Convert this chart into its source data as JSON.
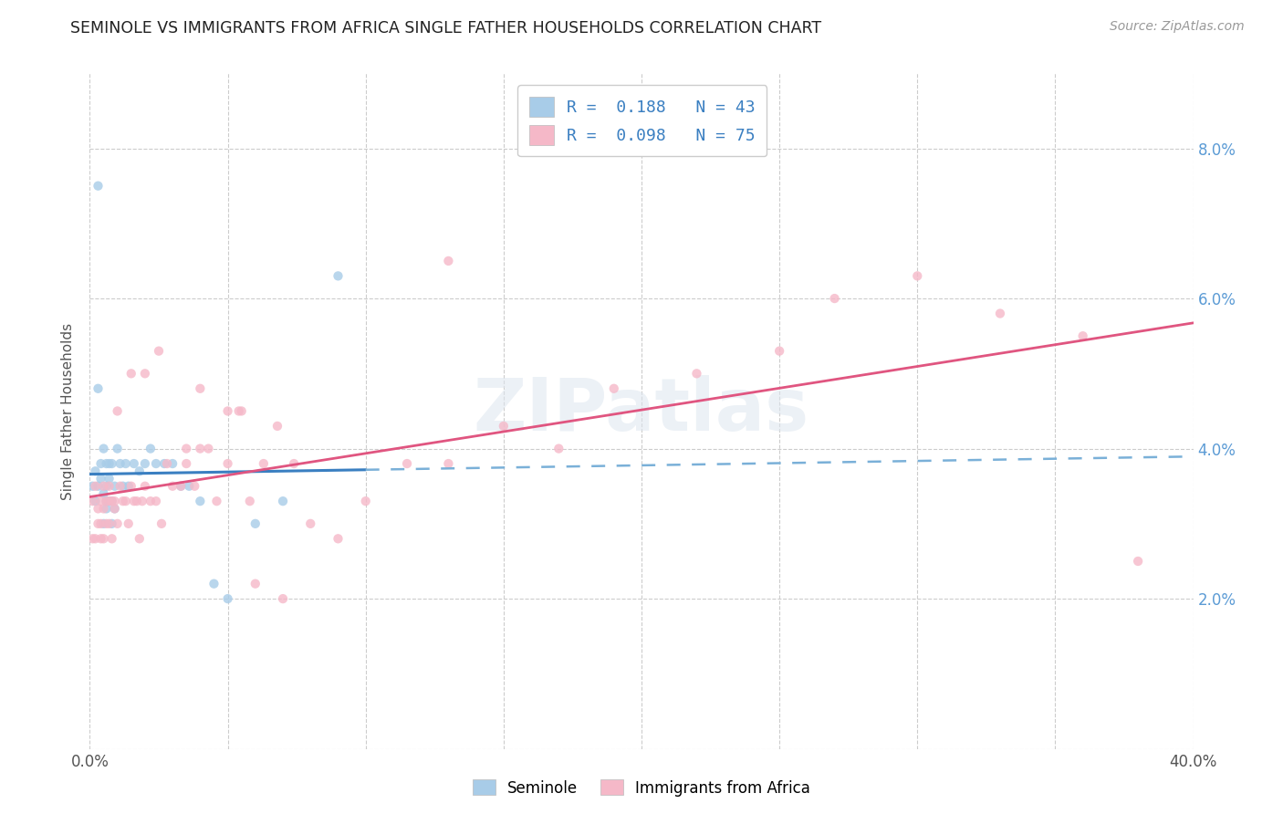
{
  "title": "SEMINOLE VS IMMIGRANTS FROM AFRICA SINGLE FATHER HOUSEHOLDS CORRELATION CHART",
  "source": "Source: ZipAtlas.com",
  "ylabel": "Single Father Households",
  "xlim": [
    0.0,
    0.4
  ],
  "ylim": [
    0.0,
    0.09
  ],
  "xtick_positions": [
    0.0,
    0.05,
    0.1,
    0.15,
    0.2,
    0.25,
    0.3,
    0.35,
    0.4
  ],
  "xticklabels": [
    "0.0%",
    "",
    "",
    "",
    "",
    "",
    "",
    "",
    "40.0%"
  ],
  "ytick_positions": [
    0.0,
    0.02,
    0.04,
    0.06,
    0.08
  ],
  "yticklabels_right": [
    "",
    "2.0%",
    "4.0%",
    "6.0%",
    "8.0%"
  ],
  "legend_label1": "R =  0.188   N = 43",
  "legend_label2": "R =  0.098   N = 75",
  "color_blue_fill": "#a8cce8",
  "color_pink_fill": "#f5b8c8",
  "color_blue_line": "#3a7fc1",
  "color_pink_line": "#e05580",
  "color_blue_dashed": "#7ab0d8",
  "watermark": "ZIPatlas",
  "bottom_label1": "Seminole",
  "bottom_label2": "Immigrants from Africa",
  "seminole_x": [
    0.001,
    0.002,
    0.002,
    0.003,
    0.003,
    0.004,
    0.004,
    0.005,
    0.005,
    0.005,
    0.006,
    0.006,
    0.006,
    0.006,
    0.007,
    0.007,
    0.007,
    0.008,
    0.008,
    0.008,
    0.009,
    0.009,
    0.01,
    0.011,
    0.012,
    0.013,
    0.014,
    0.016,
    0.018,
    0.02,
    0.022,
    0.024,
    0.027,
    0.03,
    0.033,
    0.036,
    0.04,
    0.045,
    0.05,
    0.06,
    0.07,
    0.09,
    0.003
  ],
  "seminole_y": [
    0.035,
    0.037,
    0.033,
    0.035,
    0.075,
    0.038,
    0.036,
    0.04,
    0.034,
    0.03,
    0.032,
    0.035,
    0.038,
    0.033,
    0.033,
    0.036,
    0.038,
    0.03,
    0.033,
    0.038,
    0.035,
    0.032,
    0.04,
    0.038,
    0.035,
    0.038,
    0.035,
    0.038,
    0.037,
    0.038,
    0.04,
    0.038,
    0.038,
    0.038,
    0.035,
    0.035,
    0.033,
    0.022,
    0.02,
    0.03,
    0.033,
    0.063,
    0.048
  ],
  "africa_x": [
    0.001,
    0.001,
    0.002,
    0.002,
    0.003,
    0.003,
    0.004,
    0.004,
    0.004,
    0.005,
    0.005,
    0.005,
    0.006,
    0.006,
    0.007,
    0.007,
    0.007,
    0.008,
    0.008,
    0.009,
    0.009,
    0.01,
    0.011,
    0.012,
    0.013,
    0.014,
    0.015,
    0.016,
    0.017,
    0.018,
    0.019,
    0.02,
    0.022,
    0.024,
    0.026,
    0.028,
    0.03,
    0.033,
    0.035,
    0.038,
    0.04,
    0.043,
    0.046,
    0.05,
    0.054,
    0.058,
    0.063,
    0.068,
    0.074,
    0.08,
    0.09,
    0.1,
    0.115,
    0.13,
    0.15,
    0.17,
    0.19,
    0.22,
    0.25,
    0.27,
    0.3,
    0.33,
    0.36,
    0.025,
    0.035,
    0.04,
    0.05,
    0.055,
    0.06,
    0.07,
    0.01,
    0.015,
    0.02,
    0.38,
    0.13
  ],
  "africa_y": [
    0.033,
    0.028,
    0.035,
    0.028,
    0.032,
    0.03,
    0.033,
    0.03,
    0.028,
    0.032,
    0.028,
    0.035,
    0.033,
    0.03,
    0.033,
    0.035,
    0.03,
    0.028,
    0.033,
    0.032,
    0.033,
    0.03,
    0.035,
    0.033,
    0.033,
    0.03,
    0.035,
    0.033,
    0.033,
    0.028,
    0.033,
    0.035,
    0.033,
    0.033,
    0.03,
    0.038,
    0.035,
    0.035,
    0.038,
    0.035,
    0.04,
    0.04,
    0.033,
    0.038,
    0.045,
    0.033,
    0.038,
    0.043,
    0.038,
    0.03,
    0.028,
    0.033,
    0.038,
    0.038,
    0.043,
    0.04,
    0.048,
    0.05,
    0.053,
    0.06,
    0.063,
    0.058,
    0.055,
    0.053,
    0.04,
    0.048,
    0.045,
    0.045,
    0.022,
    0.02,
    0.045,
    0.05,
    0.05,
    0.025,
    0.065
  ]
}
